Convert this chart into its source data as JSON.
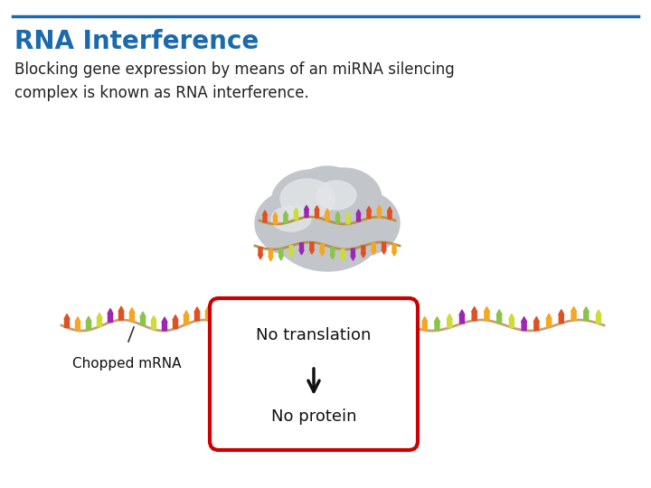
{
  "title": "RNA Interference",
  "title_color": "#1a6aad",
  "title_fontsize": 20,
  "subtitle": "Blocking gene expression by means of an miRNA silencing\ncomplex is known as RNA interference.",
  "subtitle_fontsize": 12,
  "subtitle_color": "#222222",
  "header_line_color": "#1a6aad",
  "background_color": "#ffffff",
  "box_label_top": "No translation",
  "box_label_bottom": "No protein",
  "box_color": "#cc0000",
  "chopped_mrna_label": "Chopped mRNA",
  "rna_colors_top": [
    "#e05020",
    "#f5a623",
    "#8bc34a",
    "#cddc39",
    "#9c27b0",
    "#e05020",
    "#f5a623",
    "#8bc34a",
    "#cddc39",
    "#9c27b0",
    "#e05020",
    "#f5a623"
  ],
  "rna_colors_bot": [
    "#9c27b0",
    "#e05020",
    "#f5a623",
    "#8bc34a",
    "#cddc39",
    "#9c27b0",
    "#e05020",
    "#f5a623",
    "#8bc34a",
    "#cddc39",
    "#9c27b0",
    "#e05020"
  ],
  "strand_color": "#c8a070",
  "cloud_base_color": "#c0c4c8",
  "cloud_highlight_color": "#e8eaec",
  "figw": 7.2,
  "figh": 5.4,
  "dpi": 100
}
